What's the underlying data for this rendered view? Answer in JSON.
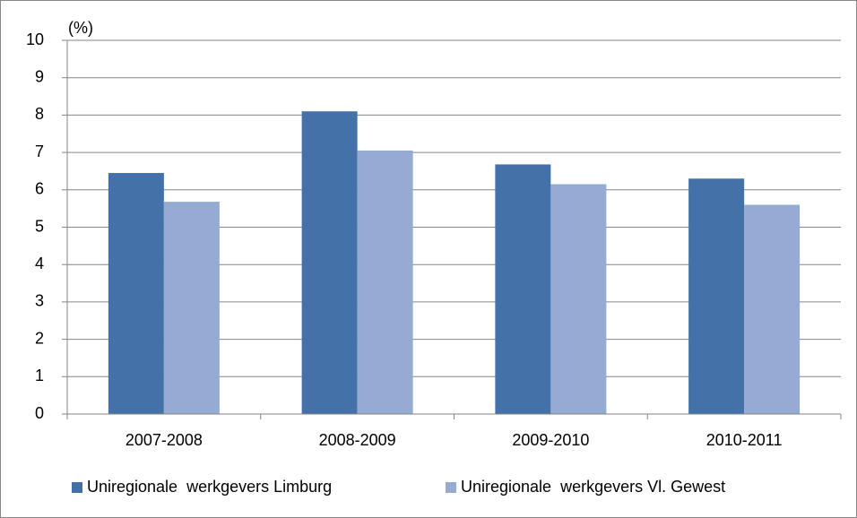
{
  "chart_data": {
    "type": "bar",
    "y_label": "(%)",
    "categories": [
      "2007-2008",
      "2008-2009",
      "2009-2010",
      "2010-2011"
    ],
    "series": [
      {
        "name": "Uniregionale  werkgevers Limburg",
        "color": "#4472a8",
        "values": [
          6.45,
          8.1,
          6.68,
          6.3
        ]
      },
      {
        "name": "Uniregionale  werkgevers Vl. Gewest",
        "color": "#95abd4",
        "values": [
          5.68,
          7.05,
          6.15,
          5.6
        ]
      }
    ],
    "ylim": [
      0,
      10
    ],
    "yticks": [
      0,
      1,
      2,
      3,
      4,
      5,
      6,
      7,
      8,
      9,
      10
    ],
    "grid": true,
    "legend": "bottom"
  }
}
